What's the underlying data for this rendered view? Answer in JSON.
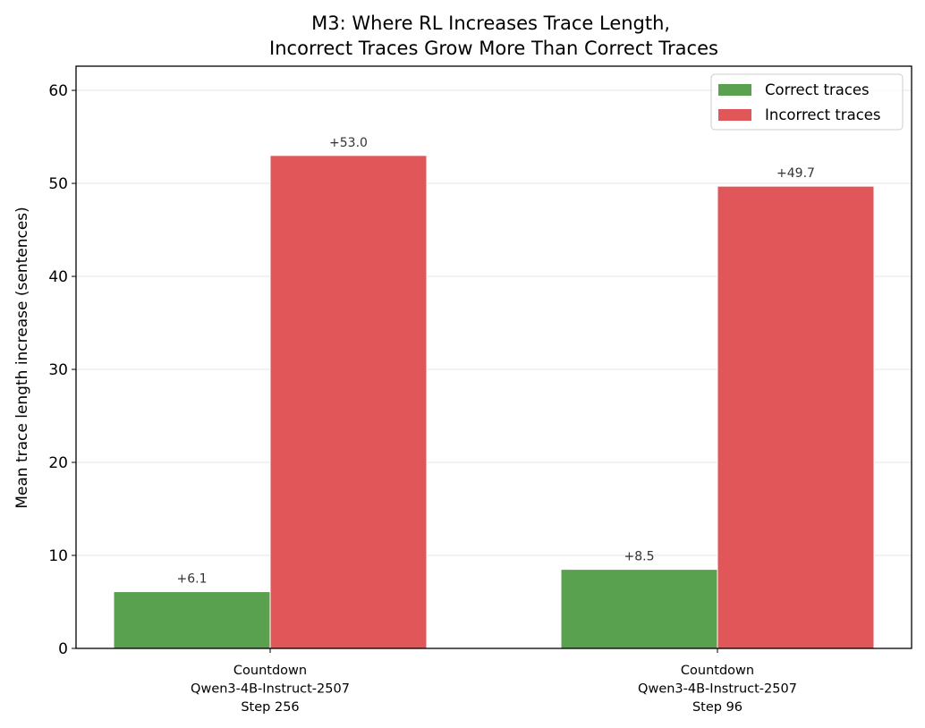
{
  "chart_data": {
    "type": "bar",
    "title": "M3: Where RL Increases Trace Length,\nIncorrect Traces Grow More Than Correct Traces",
    "xlabel": "",
    "ylabel": "Mean trace length increase (sentences)",
    "categories": [
      "Countdown\nQwen3-4B-Instruct-2507\nStep 256",
      "Countdown\nQwen3-4B-Instruct-2507\nStep 96"
    ],
    "series": [
      {
        "name": "Correct traces",
        "values": [
          6.1,
          8.5
        ],
        "labels": [
          "+6.1",
          "+8.5"
        ],
        "color": "#59a14f"
      },
      {
        "name": "Incorrect traces",
        "values": [
          53.0,
          49.7
        ],
        "labels": [
          "+53.0",
          "+49.7"
        ],
        "color": "#e15759"
      }
    ],
    "ylim": [
      0,
      62.6
    ],
    "yticks": [
      0,
      10,
      20,
      30,
      40,
      50,
      60
    ],
    "grid": "y",
    "legend": "top-right"
  }
}
